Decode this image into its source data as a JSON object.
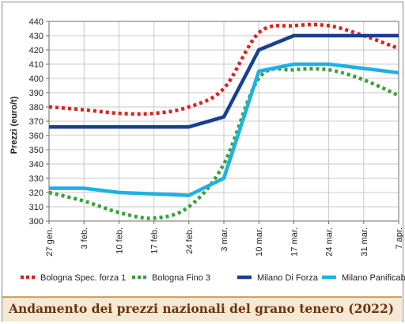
{
  "chart_data": {
    "type": "line",
    "title": "Andamento dei prezzi nazionali del grano tenero (2022)",
    "ylabel": "Prezzi (euro/t)",
    "xlabel": "",
    "ylim": [
      300,
      440
    ],
    "yticks": [
      300,
      310,
      320,
      330,
      340,
      350,
      360,
      370,
      380,
      390,
      400,
      410,
      420,
      430,
      440
    ],
    "categories": [
      "27 gen.",
      "3 feb.",
      "10 feb.",
      "17 feb.",
      "24 feb.",
      "3 mar.",
      "10 mar.",
      "17 mar.",
      "24 mar.",
      "31 mar.",
      "7 apr."
    ],
    "grid": true,
    "legend_position": "bottom",
    "series": [
      {
        "name": "Bologna Spec. forza 1",
        "color": "#e0201b",
        "style": "dotted",
        "values": [
          380,
          378,
          375.5,
          375.5,
          380,
          393,
          432,
          437,
          437,
          430,
          421
        ],
        "smooth": true
      },
      {
        "name": "Bologna Fino 3",
        "color": "#3aa13d",
        "style": "dotted",
        "values": [
          320,
          314,
          306,
          302,
          310,
          340,
          400,
          406,
          406,
          399,
          388
        ],
        "smooth": true
      },
      {
        "name": "Milano Di Forza",
        "color": "#1a3f8f",
        "style": "solid",
        "values": [
          366,
          366,
          366,
          366,
          366,
          373,
          420,
          430,
          430,
          430,
          430
        ],
        "smooth": false
      },
      {
        "name": "Milano Panificabile",
        "color": "#1fb0e3",
        "style": "solid",
        "values": [
          323,
          323,
          320,
          319,
          318,
          330,
          405,
          410,
          410,
          407,
          404
        ],
        "smooth": false
      }
    ]
  }
}
